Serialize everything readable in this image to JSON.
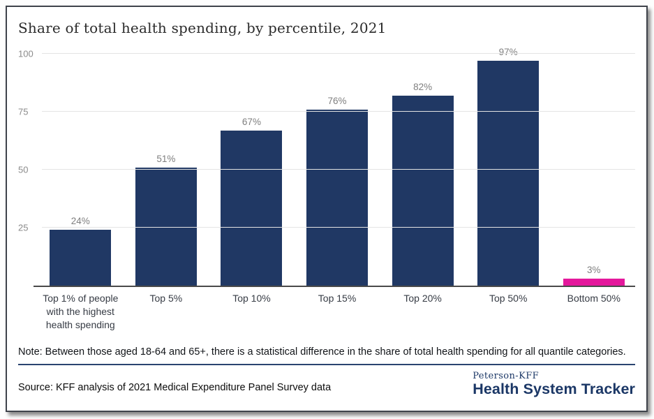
{
  "panel": {
    "title": "Share of total health spending, by percentile, 2021"
  },
  "chart_data": {
    "type": "bar",
    "title": "Share of total health spending, by percentile, 2021",
    "categories": [
      "Top 1% of people with the highest health spending",
      "Top 5%",
      "Top 10%",
      "Top 15%",
      "Top 20%",
      "Top 50%",
      "Bottom 50%"
    ],
    "values": [
      24,
      51,
      67,
      76,
      82,
      97,
      3
    ],
    "value_labels": [
      "24%",
      "51%",
      "67%",
      "76%",
      "82%",
      "97%",
      "3%"
    ],
    "bar_colors": [
      "#203864",
      "#203864",
      "#203864",
      "#203864",
      "#203864",
      "#203864",
      "#e4189c"
    ],
    "xlabel": "",
    "ylabel": "",
    "ylim": [
      0,
      100
    ],
    "yticks": [
      25,
      50,
      75,
      100
    ],
    "grid": true,
    "legend": false
  },
  "note": "Note: Between those aged 18-64 and 65+, there is a statistical difference in the share of total health spending for all quantile categories.",
  "source": "Source: KFF analysis of 2021 Medical Expenditure Panel Survey data",
  "logo": {
    "top": "Peterson-KFF",
    "bottom": "Health System Tracker"
  },
  "colors": {
    "bar_navy": "#203864",
    "bar_pink": "#e4189c",
    "gridline": "#e4e4e4",
    "axis_line": "#4a4a4a",
    "tick_label": "#8b8b8b",
    "value_label": "#7f7f7f",
    "category_label": "#363b44",
    "note_rule": "#2a4470",
    "logo_navy": "#1b3766",
    "panel_border": "#3f434b"
  }
}
